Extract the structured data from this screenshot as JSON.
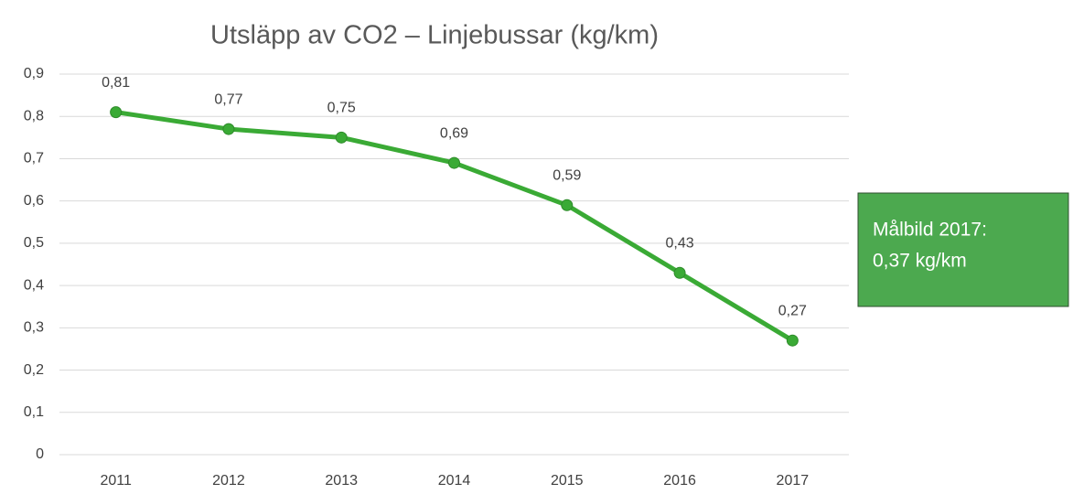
{
  "chart_data": {
    "type": "line",
    "title": "Utsläpp av CO2 – Linjebussar (kg/km)",
    "categories": [
      "2011",
      "2012",
      "2013",
      "2014",
      "2015",
      "2016",
      "2017"
    ],
    "series": [
      {
        "name": "Linjebussar",
        "color": "#3aaa35",
        "values": [
          0.81,
          0.77,
          0.75,
          0.69,
          0.59,
          0.43,
          0.27
        ],
        "value_labels": [
          "0,81",
          "0,77",
          "0,75",
          "0,69",
          "0,59",
          "0,43",
          "0,27"
        ]
      }
    ],
    "ylim": [
      0,
      0.9
    ],
    "yticks": [
      0,
      {
        "value": 0.1,
        "label": "0,1"
      },
      {
        "value": 0.2,
        "label": "0,2"
      },
      {
        "value": 0.3,
        "label": "0,3"
      },
      {
        "value": 0.4,
        "label": "0,4"
      },
      {
        "value": 0.5,
        "label": "0,5"
      },
      {
        "value": 0.6,
        "label": "0,6"
      },
      {
        "value": 0.7,
        "label": "0,7"
      },
      {
        "value": 0.8,
        "label": "0,8"
      },
      {
        "value": 0.9,
        "label": "0,9"
      }
    ],
    "grid": true,
    "annotation": {
      "lines": [
        "Målbild 2017:",
        "0,37 kg/km"
      ],
      "color": "#4ca94f"
    }
  }
}
